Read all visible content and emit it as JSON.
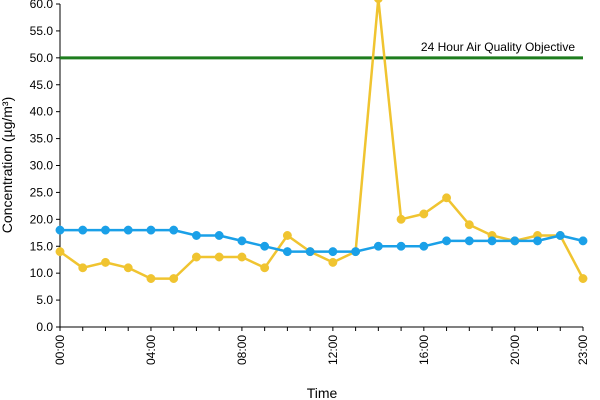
{
  "chart_data": {
    "type": "line",
    "xlabel": "Time",
    "ylabel": "Concentration (µg/m³)",
    "ylim": [
      0,
      60
    ],
    "yticks": [
      "0.0",
      "5.0",
      "10.0",
      "15.0",
      "20.0",
      "25.0",
      "30.0",
      "35.0",
      "40.0",
      "45.0",
      "50.0",
      "55.0",
      "60.0"
    ],
    "x": [
      "00:00",
      "01:00",
      "02:00",
      "03:00",
      "04:00",
      "05:00",
      "06:00",
      "07:00",
      "08:00",
      "09:00",
      "10:00",
      "11:00",
      "12:00",
      "13:00",
      "14:00",
      "15:00",
      "16:00",
      "17:00",
      "18:00",
      "19:00",
      "20:00",
      "21:00",
      "22:00",
      "23:00"
    ],
    "xticks": [
      "00:00",
      "04:00",
      "08:00",
      "12:00",
      "16:00",
      "20:00",
      "23:00"
    ],
    "grid": false,
    "legend": "none",
    "series": [
      {
        "color": "#f0c430",
        "values": [
          14,
          11,
          12,
          11,
          9,
          9,
          13,
          13,
          13,
          11,
          17,
          14,
          12,
          14,
          61,
          20,
          21,
          24,
          19,
          17,
          16,
          17,
          17,
          9
        ]
      },
      {
        "color": "#1aa0e8",
        "values": [
          18,
          18,
          18,
          18,
          18,
          18,
          17,
          17,
          16,
          15,
          14,
          14,
          14,
          14,
          15,
          15,
          15,
          16,
          16,
          16,
          16,
          16,
          17,
          16
        ]
      }
    ],
    "reference_line": {
      "value": 50,
      "label": "24 Hour Air Quality Objective",
      "color": "#1e7d1e"
    }
  }
}
